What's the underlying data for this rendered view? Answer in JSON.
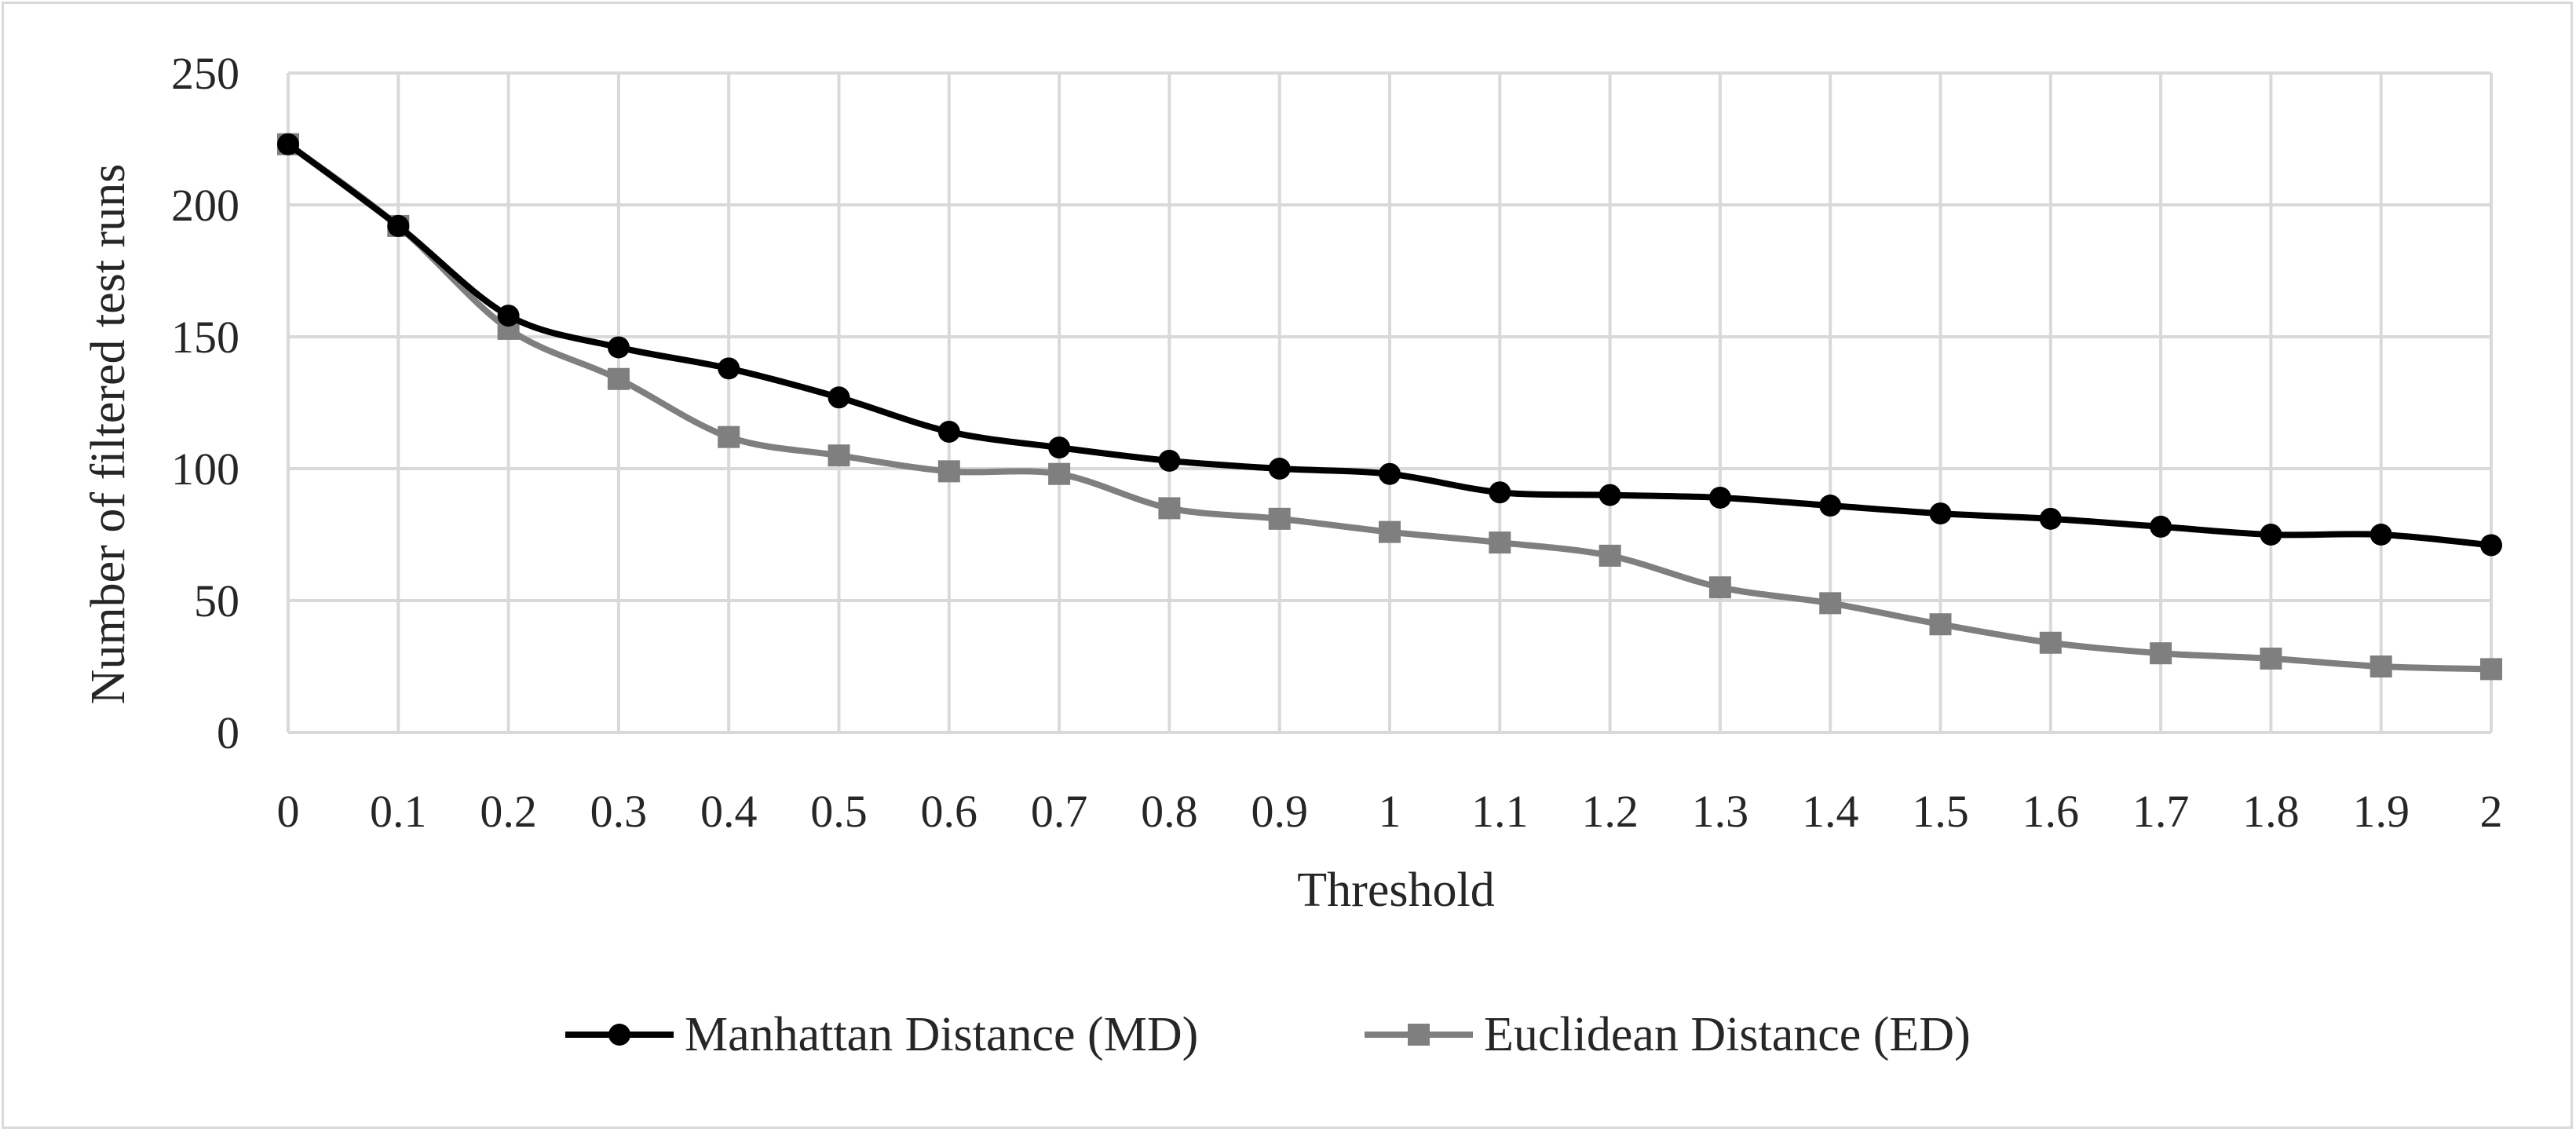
{
  "chart_data": {
    "type": "line",
    "title": "",
    "xlabel": "Threshold",
    "ylabel": "Number of filtered test runs",
    "x": [
      "0",
      "0.1",
      "0.2",
      "0.3",
      "0.4",
      "0.5",
      "0.6",
      "0.7",
      "0.8",
      "0.9",
      "1",
      "1.1",
      "1.2",
      "1.3",
      "1.4",
      "1.5",
      "1.6",
      "1.7",
      "1.8",
      "1.9",
      "2"
    ],
    "ylim": [
      0,
      250
    ],
    "yticks": [
      "0",
      "50",
      "100",
      "150",
      "200",
      "250"
    ],
    "grid": true,
    "legend_position": "bottom",
    "series": [
      {
        "name": "Manhattan Distance (MD)",
        "color": "#000000",
        "marker": "circle",
        "values": [
          223,
          192,
          158,
          146,
          138,
          127,
          114,
          108,
          103,
          100,
          98,
          91,
          90,
          89,
          86,
          83,
          81,
          78,
          75,
          75,
          71
        ]
      },
      {
        "name": "Euclidean Distance (ED)",
        "color": "#7f7f7f",
        "marker": "square",
        "values": [
          223,
          192,
          153,
          134,
          112,
          105,
          99,
          98,
          85,
          81,
          76,
          72,
          67,
          55,
          49,
          41,
          34,
          30,
          28,
          25,
          24
        ]
      }
    ]
  }
}
